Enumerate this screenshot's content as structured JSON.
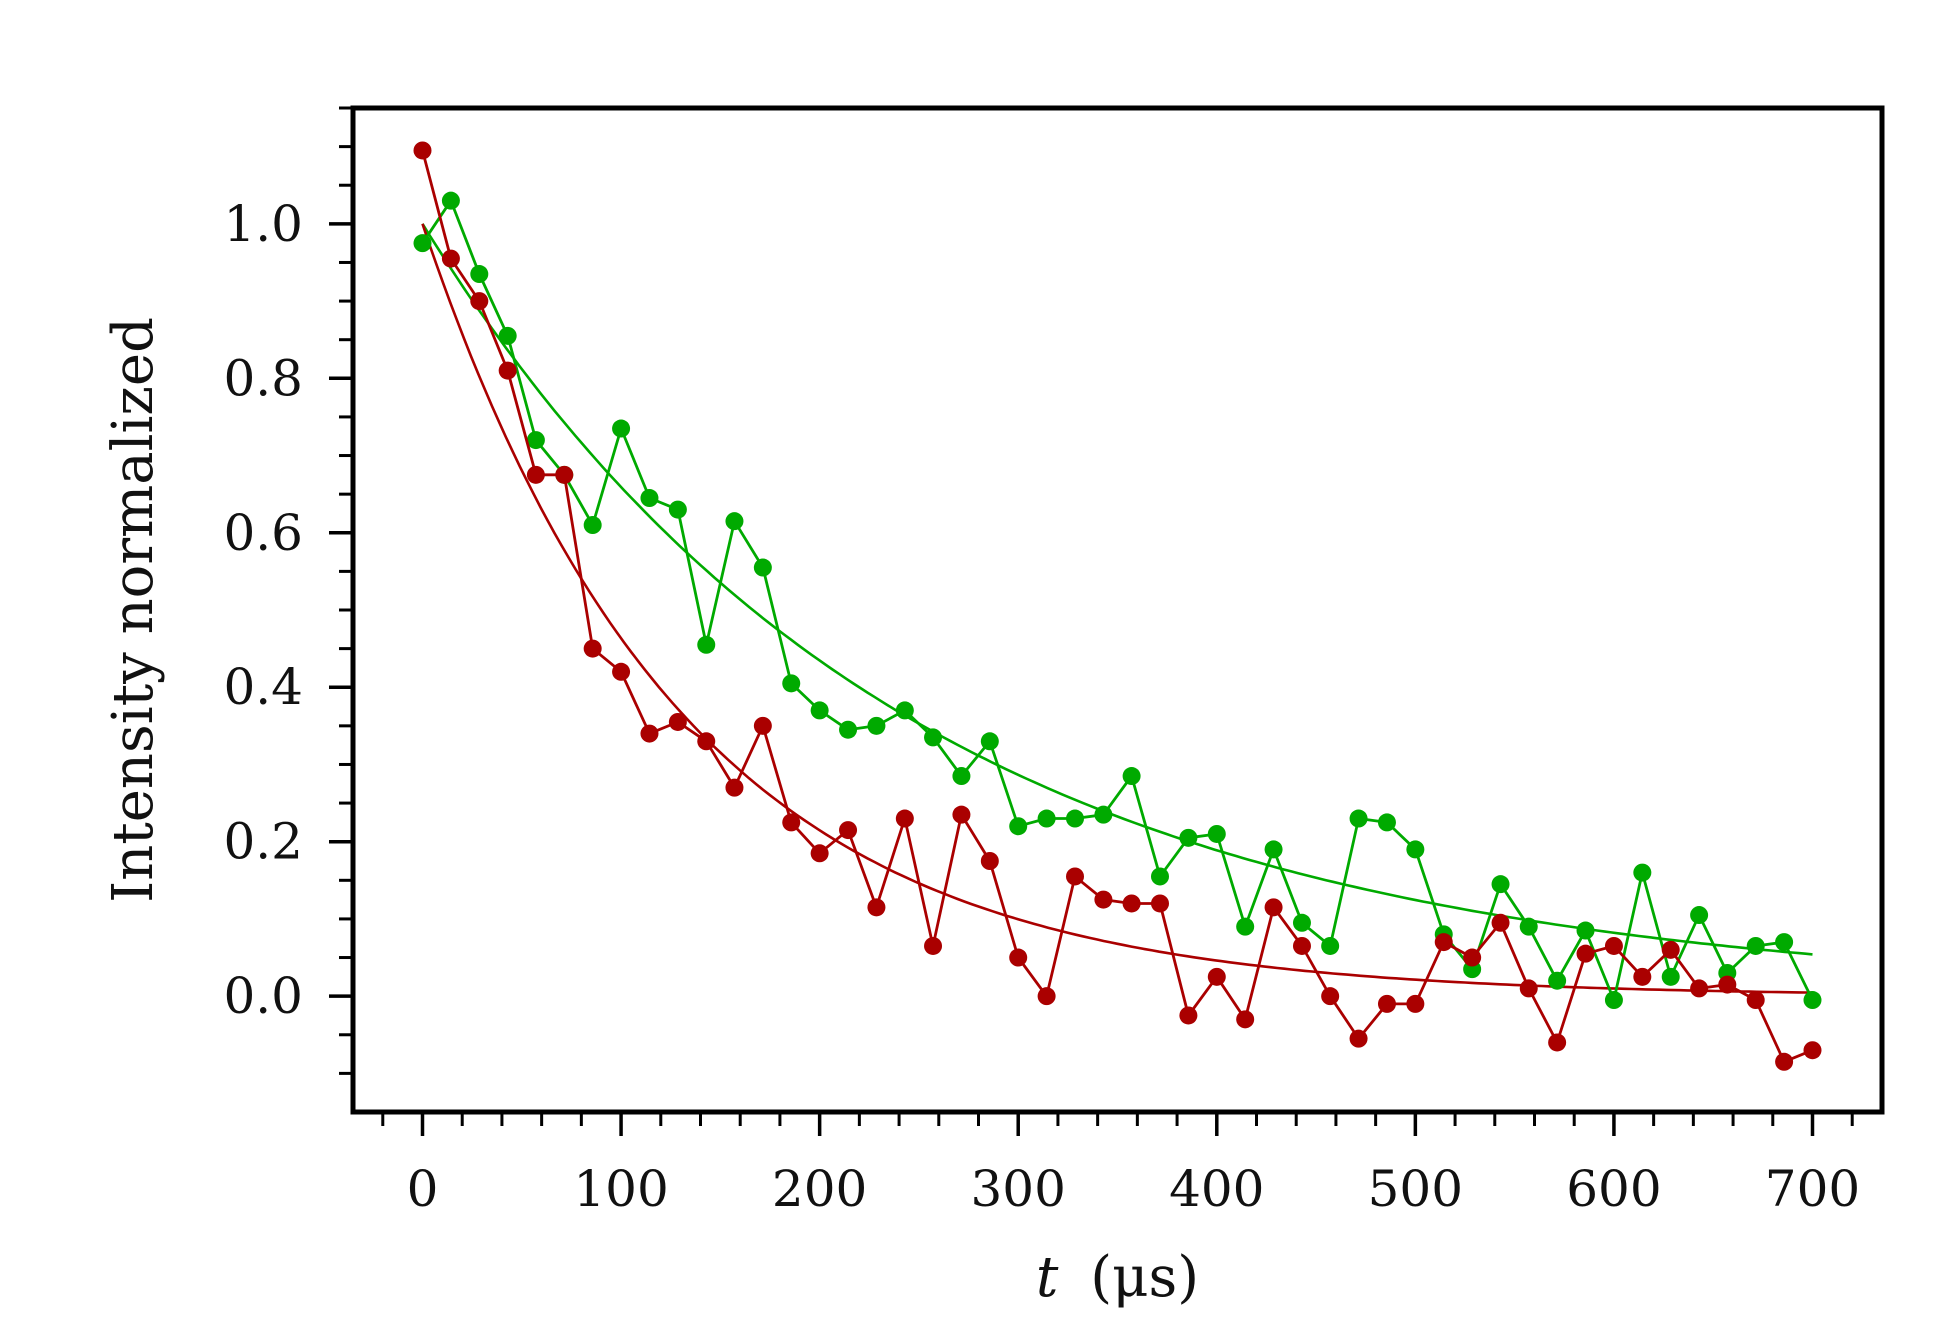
{
  "chart_data": {
    "type": "line",
    "title": "",
    "xlabel": "t (μs)",
    "xlabel_var": "t",
    "xlabel_unit": "(μs)",
    "ylabel": "Intensity normalized",
    "xlim": [
      -35,
      735
    ],
    "ylim": [
      -0.15,
      1.15
    ],
    "x_ticks": [
      0,
      100,
      200,
      300,
      400,
      500,
      600,
      700
    ],
    "x_tick_labels": [
      "0",
      "100",
      "200",
      "300",
      "400",
      "500",
      "600",
      "700"
    ],
    "y_ticks": [
      0.0,
      0.2,
      0.4,
      0.6,
      0.8,
      1.0
    ],
    "y_tick_labels": [
      "0.0",
      "0.2",
      "0.4",
      "0.6",
      "0.8",
      "1.0"
    ],
    "x_minor_step": 20,
    "y_minor_step": 0.05,
    "grid": false,
    "legend": "none",
    "x": [
      0,
      14.3,
      28.6,
      42.9,
      57.1,
      71.4,
      85.7,
      100,
      114.3,
      128.6,
      142.9,
      157.1,
      171.4,
      185.7,
      200,
      214.3,
      228.6,
      242.9,
      257.1,
      271.4,
      285.7,
      300,
      314.3,
      328.6,
      342.9,
      357.1,
      371.4,
      385.7,
      400,
      414.3,
      428.6,
      442.9,
      457.1,
      471.4,
      485.7,
      500,
      514.3,
      528.6,
      542.9,
      557.1,
      571.4,
      585.7,
      600,
      614.3,
      628.6,
      642.9,
      657.1,
      671.4,
      685.7,
      700
    ],
    "series": [
      {
        "color": "#00aa00",
        "values": [
          0.975,
          1.03,
          0.935,
          0.855,
          0.72,
          0.675,
          0.61,
          0.735,
          0.645,
          0.63,
          0.455,
          0.615,
          0.555,
          0.405,
          0.37,
          0.345,
          0.35,
          0.37,
          0.335,
          0.285,
          0.33,
          0.22,
          0.23,
          0.23,
          0.235,
          0.285,
          0.155,
          0.205,
          0.21,
          0.09,
          0.19,
          0.095,
          0.065,
          0.23,
          0.225,
          0.19,
          0.08,
          0.035,
          0.145,
          0.09,
          0.02,
          0.085,
          -0.005,
          0.16,
          0.025,
          0.105,
          0.03,
          0.065,
          0.07,
          -0.005
        ],
        "fit_tau": 240,
        "fit_amplitude": 1.0
      },
      {
        "color": "#aa0000",
        "values": [
          1.095,
          0.955,
          0.9,
          0.81,
          0.675,
          0.675,
          0.45,
          0.42,
          0.34,
          0.355,
          0.33,
          0.27,
          0.35,
          0.225,
          0.185,
          0.215,
          0.115,
          0.23,
          0.065,
          0.235,
          0.175,
          0.05,
          0.0,
          0.155,
          0.125,
          0.12,
          0.12,
          -0.025,
          0.025,
          -0.03,
          0.115,
          0.065,
          0.0,
          -0.055,
          -0.01,
          -0.01,
          0.07,
          0.05,
          0.095,
          0.01,
          -0.06,
          0.055,
          0.065,
          0.025,
          0.06,
          0.01,
          0.015,
          -0.005,
          -0.085,
          -0.07
        ],
        "fit_tau": 130,
        "fit_amplitude": 1.0
      }
    ]
  }
}
